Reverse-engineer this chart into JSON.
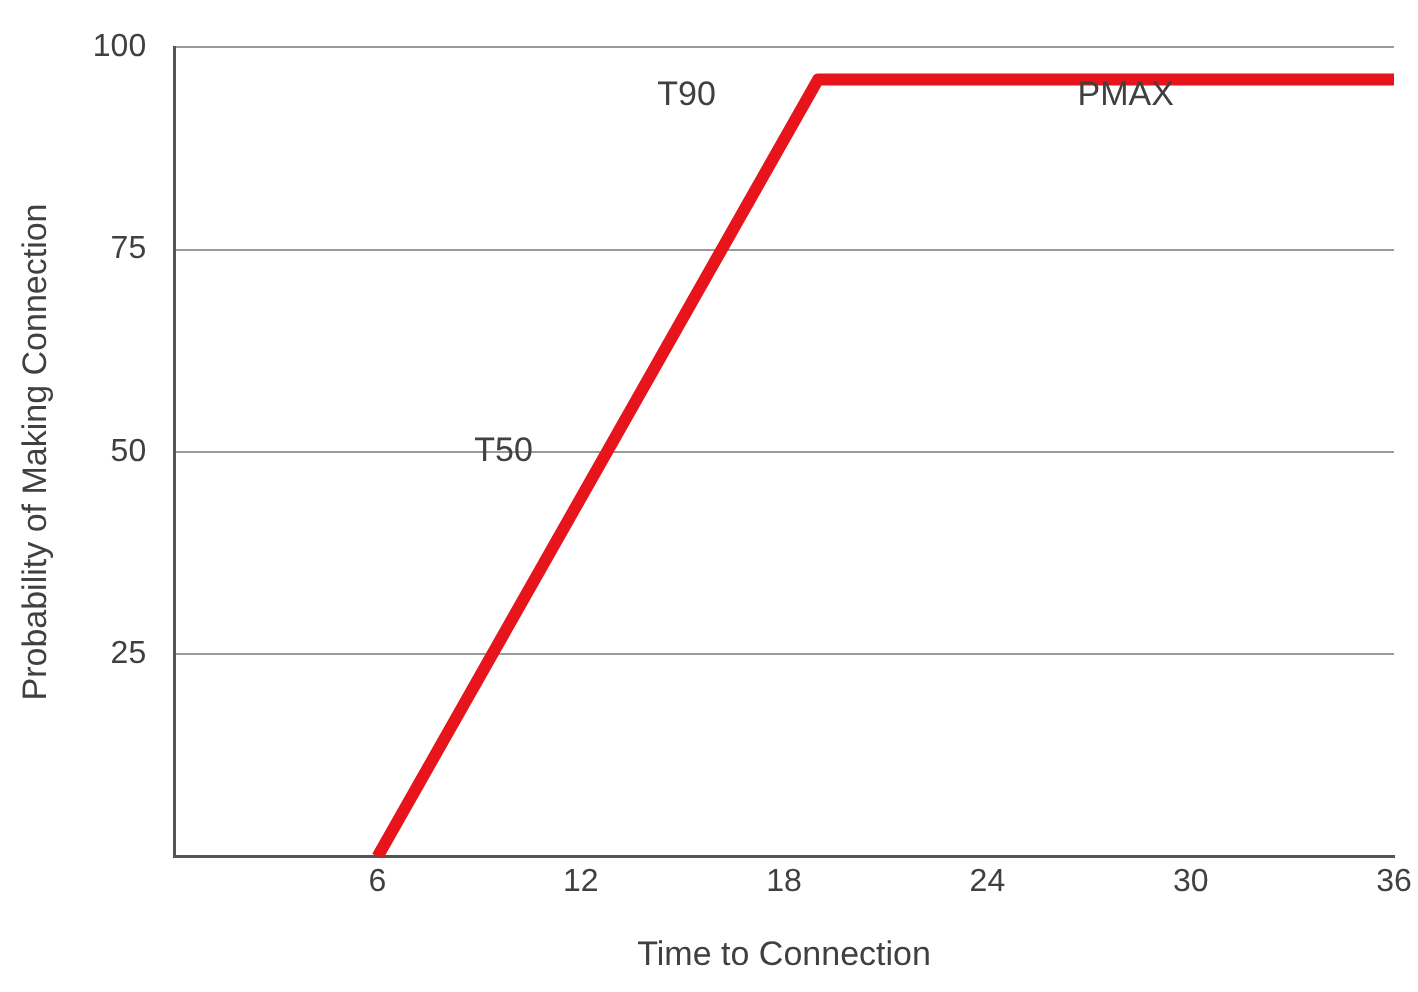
{
  "chart_data": {
    "type": "line",
    "xlabel": "Time to Connection",
    "ylabel": "Probability of Making Connection",
    "x": [
      6,
      19,
      36
    ],
    "series": [
      {
        "color": "#e8141b",
        "values": [
          0,
          96,
          96
        ]
      }
    ],
    "xlim": [
      0,
      36
    ],
    "xticks": [
      6,
      12,
      18,
      24,
      30,
      36
    ],
    "ylim": [
      0,
      100
    ],
    "yticks": [
      25,
      50,
      75,
      100
    ],
    "grid": "y",
    "legend": false,
    "marker": "none",
    "line_style": "solid",
    "annotations": [
      "T90",
      "T50",
      "PMAX"
    ]
  }
}
